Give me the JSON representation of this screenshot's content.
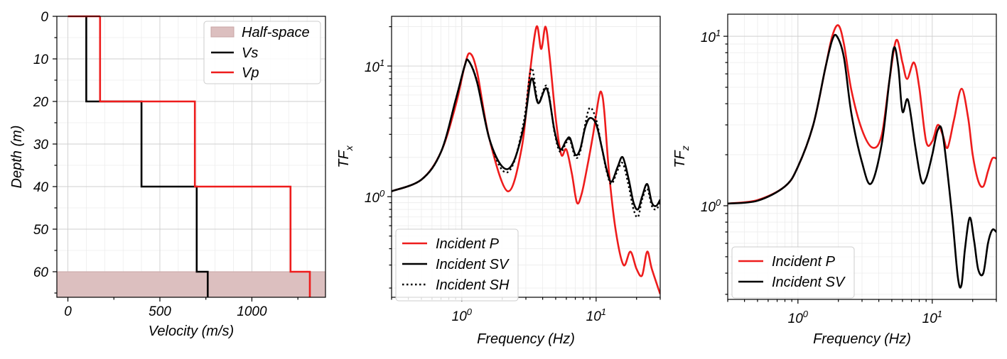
{
  "colors": {
    "red": "#ee1c1c",
    "black": "#000000",
    "halfspace": "#dcbfbf",
    "halfspace_edge": "#c9a6a6"
  },
  "chart_data": [
    {
      "id": "profile",
      "type": "line",
      "xlabel": "Velocity (m/s)",
      "ylabel": "Depth (m)",
      "xlim": [
        -60,
        1400
      ],
      "ylim": [
        0,
        66
      ],
      "y_inverted": true,
      "x_ticks": [
        0,
        500,
        1000
      ],
      "x_tick_labels": [
        "0",
        "500",
        "1000"
      ],
      "y_ticks": [
        0,
        10,
        20,
        30,
        40,
        50,
        60
      ],
      "y_tick_labels": [
        "0",
        "10",
        "20",
        "30",
        "40",
        "50",
        "60"
      ],
      "half_space": {
        "label": "Half-space",
        "depth_from": 60,
        "depth_to": 66
      },
      "series": [
        {
          "name": "Vs",
          "color": "black",
          "layers": [
            {
              "top": 0,
              "bottom": 20,
              "v": 100
            },
            {
              "top": 20,
              "bottom": 40,
              "v": 400
            },
            {
              "top": 40,
              "bottom": 60,
              "v": 700
            },
            {
              "top": 60,
              "bottom": 66,
              "v": 760
            }
          ]
        },
        {
          "name": "Vp",
          "color": "red",
          "layers": [
            {
              "top": 0,
              "bottom": 20,
              "v": 175
            },
            {
              "top": 20,
              "bottom": 40,
              "v": 690
            },
            {
              "top": 40,
              "bottom": 60,
              "v": 1210
            },
            {
              "top": 60,
              "bottom": 66,
              "v": 1315
            }
          ]
        }
      ],
      "legend": {
        "position": "top-right",
        "entries": [
          "Half-space",
          "Vs",
          "Vp"
        ]
      }
    },
    {
      "id": "tfx",
      "type": "line",
      "xscale": "log",
      "yscale": "log",
      "xlabel": "Frequency (Hz)",
      "ylabel_base": "TF",
      "ylabel_sub": "x",
      "xlim": [
        0.3,
        30
      ],
      "ylim": [
        0.17,
        24
      ],
      "x_ticks": [
        1,
        10
      ],
      "y_ticks": [
        1,
        10
      ],
      "legend": {
        "position": "bottom-left"
      },
      "series": [
        {
          "name": "Incident P",
          "color": "red",
          "style": "solid",
          "x": [
            0.3,
            0.5,
            0.7,
            0.9,
            1.05,
            1.15,
            1.3,
            1.6,
            2.2,
            2.8,
            3.2,
            3.6,
            3.9,
            4.2,
            4.5,
            5.0,
            5.5,
            6.0,
            6.6,
            7.2,
            7.8,
            8.5,
            9.5,
            10.5,
            11.0,
            11.5,
            12.5,
            14.0,
            16.0,
            18.0,
            20.0,
            22.0,
            24.0,
            26.0,
            30.0
          ],
          "y": [
            1.1,
            1.35,
            2.2,
            5.0,
            10.0,
            12.5,
            9.0,
            2.8,
            1.1,
            2.4,
            8.5,
            20.0,
            13.5,
            20.0,
            12.0,
            4.0,
            2.1,
            2.3,
            1.5,
            0.9,
            1.05,
            1.6,
            3.0,
            5.8,
            6.2,
            4.5,
            1.5,
            0.55,
            0.3,
            0.38,
            0.28,
            0.25,
            0.38,
            0.28,
            0.18
          ]
        },
        {
          "name": "Incident SV",
          "color": "black",
          "style": "solid",
          "x": [
            0.3,
            0.5,
            0.7,
            0.9,
            1.05,
            1.12,
            1.3,
            1.6,
            2.0,
            2.4,
            2.9,
            3.3,
            3.7,
            4.3,
            4.9,
            5.4,
            6.0,
            6.4,
            7.0,
            7.6,
            8.3,
            9.0,
            10.0,
            11.0,
            12.0,
            13.0,
            14.5,
            15.8,
            17.5,
            19.0,
            20.5,
            22.0,
            24.0,
            26.0,
            28.0,
            30.0
          ],
          "y": [
            1.1,
            1.35,
            2.2,
            5.5,
            10.0,
            11.0,
            7.5,
            2.8,
            1.7,
            1.8,
            3.5,
            8.0,
            5.2,
            6.7,
            3.2,
            2.3,
            2.7,
            2.8,
            2.1,
            2.3,
            3.4,
            4.0,
            3.6,
            2.4,
            1.6,
            1.3,
            1.7,
            2.0,
            1.35,
            0.9,
            0.8,
            1.0,
            1.25,
            0.9,
            0.85,
            0.95
          ]
        },
        {
          "name": "Incident SH",
          "color": "black",
          "style": "dotted",
          "x": [
            0.3,
            0.5,
            0.7,
            0.9,
            1.05,
            1.12,
            1.3,
            1.6,
            2.0,
            2.4,
            2.9,
            3.3,
            3.7,
            4.3,
            4.9,
            5.4,
            6.0,
            6.4,
            7.0,
            7.6,
            8.3,
            9.0,
            10.0,
            11.0,
            12.0,
            13.0,
            14.5,
            15.8,
            17.5,
            19.0,
            20.5,
            22.0,
            24.0,
            26.0,
            28.0,
            30.0
          ],
          "y": [
            1.1,
            1.35,
            2.2,
            5.5,
            10.0,
            11.0,
            7.6,
            2.8,
            1.6,
            1.75,
            3.8,
            9.6,
            5.3,
            7.0,
            3.1,
            2.2,
            2.6,
            2.7,
            2.0,
            2.2,
            3.6,
            4.8,
            3.9,
            2.4,
            1.55,
            1.25,
            1.6,
            1.8,
            1.2,
            0.8,
            0.7,
            0.95,
            1.15,
            0.85,
            0.8,
            0.9
          ]
        }
      ]
    },
    {
      "id": "tfz",
      "type": "line",
      "xscale": "log",
      "yscale": "log",
      "xlabel": "Frequency (Hz)",
      "ylabel_base": "TF",
      "ylabel_sub": "z",
      "xlim": [
        0.3,
        30
      ],
      "ylim": [
        0.28,
        13.5
      ],
      "x_ticks": [
        1,
        10
      ],
      "y_ticks": [
        1,
        10
      ],
      "legend": {
        "position": "bottom-left"
      },
      "series": [
        {
          "name": "Incident P",
          "color": "red",
          "style": "solid",
          "x": [
            0.3,
            0.5,
            0.8,
            1.0,
            1.3,
            1.6,
            1.8,
            2.0,
            2.2,
            2.5,
            3.0,
            3.6,
            4.2,
            4.8,
            5.4,
            6.0,
            6.5,
            7.3,
            8.0,
            9.0,
            10.0,
            11.0,
            12.0,
            13.0,
            14.5,
            16.5,
            18.5,
            20.0,
            22.0,
            24.0,
            26.0,
            28.0,
            30.0
          ],
          "y": [
            1.03,
            1.08,
            1.3,
            1.7,
            3.0,
            6.5,
            10.0,
            11.6,
            9.0,
            4.8,
            2.8,
            2.2,
            2.6,
            5.5,
            9.5,
            7.0,
            5.6,
            7.0,
            5.0,
            2.4,
            2.4,
            3.0,
            2.6,
            2.2,
            3.2,
            4.9,
            3.3,
            2.0,
            1.4,
            1.3,
            1.6,
            1.9,
            1.9
          ]
        },
        {
          "name": "Incident SV",
          "color": "black",
          "style": "solid",
          "x": [
            0.3,
            0.5,
            0.8,
            1.0,
            1.3,
            1.6,
            1.8,
            1.95,
            2.2,
            2.5,
            3.0,
            3.5,
            4.2,
            4.8,
            5.2,
            5.6,
            6.0,
            6.6,
            7.5,
            8.3,
            9.0,
            10.0,
            11.0,
            12.0,
            14.0,
            15.5,
            16.5,
            17.5,
            19.0,
            20.5,
            22.0,
            24.0,
            26.0,
            28.0,
            30.0
          ],
          "y": [
            1.03,
            1.07,
            1.3,
            1.7,
            3.0,
            6.5,
            9.5,
            10.0,
            7.5,
            3.5,
            1.8,
            1.35,
            2.3,
            5.5,
            8.6,
            6.5,
            3.6,
            4.2,
            2.2,
            1.4,
            1.45,
            2.0,
            2.8,
            2.6,
            0.9,
            0.38,
            0.34,
            0.55,
            0.85,
            0.62,
            0.42,
            0.4,
            0.6,
            0.72,
            0.7
          ]
        }
      ]
    }
  ]
}
